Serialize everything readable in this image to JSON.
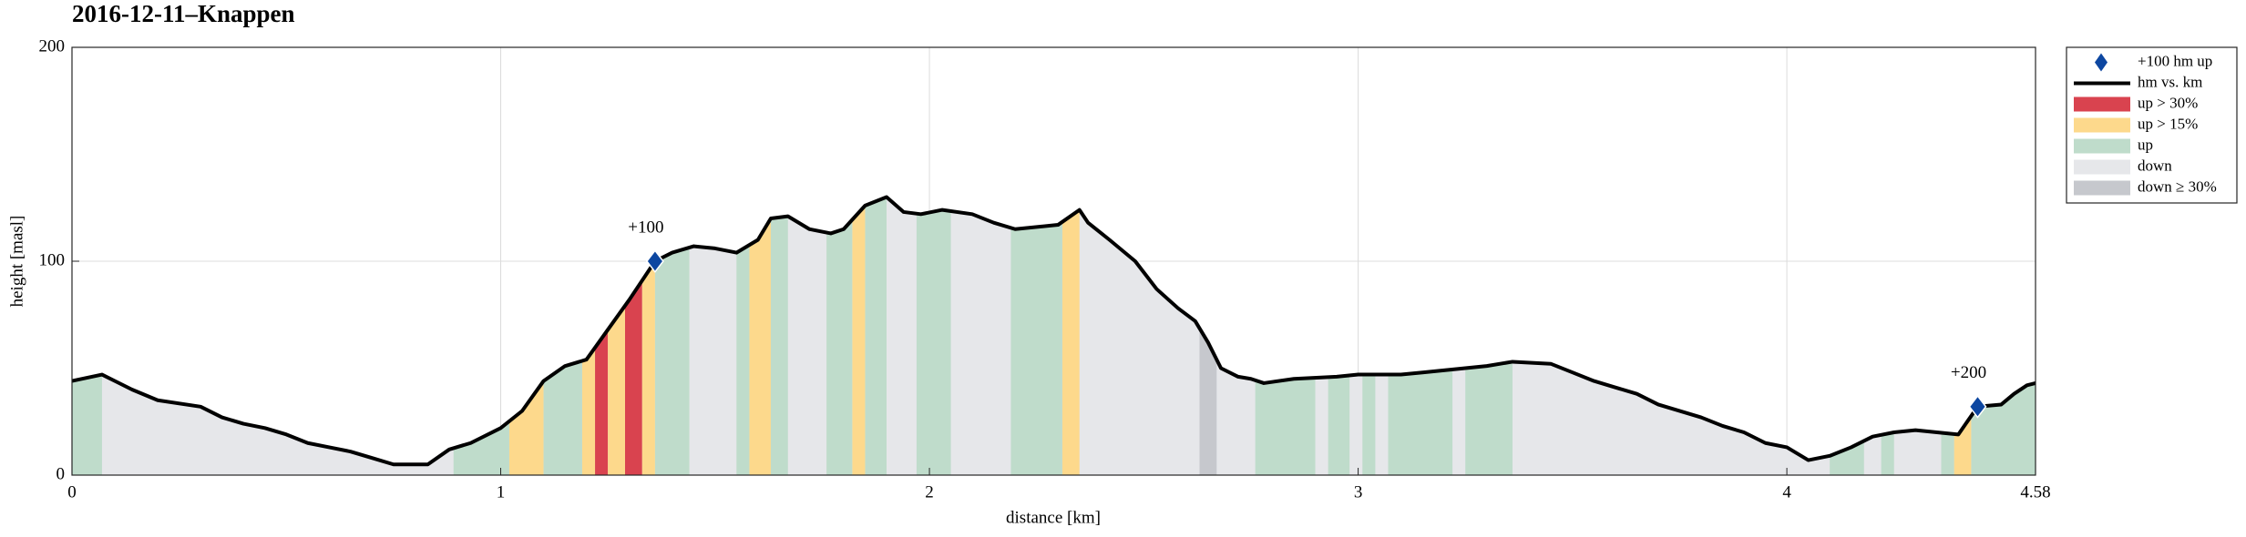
{
  "chart_data": {
    "type": "elevation-profile",
    "title": "2016-12-11–Knappen",
    "x_label": "distance [km]",
    "y_label": "height [masl]",
    "xlim": [
      0,
      4.58
    ],
    "xticks": [
      0,
      1,
      2,
      3,
      4,
      4.58
    ],
    "ylim": [
      0,
      200
    ],
    "yticks": [
      0,
      100,
      200
    ],
    "grid": true,
    "legend": "outside-right",
    "profile": {
      "name": "hm vs. km",
      "color": "#000000",
      "x": [
        0,
        0.07,
        0.14,
        0.2,
        0.3,
        0.35,
        0.4,
        0.45,
        0.5,
        0.55,
        0.6,
        0.65,
        0.7,
        0.75,
        0.8,
        0.83,
        0.88,
        0.93,
        1.0,
        1.05,
        1.1,
        1.15,
        1.2,
        1.25,
        1.3,
        1.36,
        1.4,
        1.45,
        1.5,
        1.55,
        1.6,
        1.63,
        1.67,
        1.72,
        1.77,
        1.8,
        1.85,
        1.9,
        1.94,
        1.98,
        2.03,
        2.1,
        2.15,
        2.2,
        2.3,
        2.35,
        2.37,
        2.42,
        2.48,
        2.53,
        2.58,
        2.62,
        2.65,
        2.68,
        2.72,
        2.75,
        2.78,
        2.85,
        2.95,
        3.0,
        3.05,
        3.1,
        3.15,
        3.2,
        3.3,
        3.36,
        3.45,
        3.5,
        3.55,
        3.6,
        3.65,
        3.7,
        3.8,
        3.85,
        3.9,
        3.95,
        4.0,
        4.05,
        4.1,
        4.15,
        4.2,
        4.25,
        4.3,
        4.4,
        4.445,
        4.5,
        4.53,
        4.56,
        4.58
      ],
      "values": [
        44,
        47,
        40,
        35,
        32,
        27,
        24,
        22,
        19,
        15,
        13,
        11,
        8,
        5,
        5,
        5,
        12,
        15,
        22,
        30,
        44,
        51,
        54,
        68,
        82,
        100,
        104,
        107,
        106,
        104,
        110,
        120,
        121,
        115,
        113,
        115,
        126,
        130,
        123,
        122,
        124,
        122,
        118,
        115,
        117,
        124,
        118,
        110,
        100,
        87,
        78,
        72,
        62,
        50,
        46,
        45,
        43,
        45,
        46,
        47,
        47,
        47,
        48,
        49,
        51,
        53,
        52,
        48,
        44,
        41,
        38,
        33,
        27,
        23,
        20,
        15,
        13,
        7,
        9,
        13,
        18,
        20,
        21,
        19,
        32,
        33,
        38,
        42,
        43
      ]
    },
    "markers": {
      "name": "+100 hm up",
      "color": "#0d47a1",
      "x": [
        1.36,
        4.445
      ],
      "values": [
        100,
        32
      ],
      "labels": [
        "+100",
        "+200"
      ]
    },
    "series": [
      {
        "name": "up > 30%",
        "color": "#d9434f",
        "ranges": [
          [
            1.22,
            1.25
          ],
          [
            1.29,
            1.33
          ]
        ]
      },
      {
        "name": "up > 15%",
        "color": "#fdd98c",
        "ranges": [
          [
            1.02,
            1.1
          ],
          [
            1.19,
            1.22
          ],
          [
            1.25,
            1.29
          ],
          [
            1.33,
            1.36
          ],
          [
            1.58,
            1.63
          ],
          [
            1.82,
            1.85
          ],
          [
            2.31,
            2.35
          ],
          [
            4.39,
            4.43
          ]
        ]
      },
      {
        "name": "up",
        "color": "#bfdccb",
        "ranges": [
          [
            0,
            0.07
          ],
          [
            0.89,
            1.02
          ],
          [
            1.1,
            1.19
          ],
          [
            1.36,
            1.44
          ],
          [
            1.55,
            1.58
          ],
          [
            1.63,
            1.67
          ],
          [
            1.76,
            1.82
          ],
          [
            1.85,
            1.9
          ],
          [
            1.97,
            2.05
          ],
          [
            2.19,
            2.31
          ],
          [
            2.76,
            2.9
          ],
          [
            2.93,
            2.98
          ],
          [
            3.01,
            3.04
          ],
          [
            3.07,
            3.22
          ],
          [
            3.25,
            3.36
          ],
          [
            4.1,
            4.18
          ],
          [
            4.22,
            4.25
          ],
          [
            4.36,
            4.39
          ],
          [
            4.43,
            4.58
          ]
        ]
      },
      {
        "name": "down",
        "color": "#e6e7ea",
        "ranges": []
      },
      {
        "name": "down ≥ 30%",
        "color": "#c6c8cd",
        "ranges": [
          [
            2.63,
            2.67
          ]
        ]
      }
    ]
  }
}
